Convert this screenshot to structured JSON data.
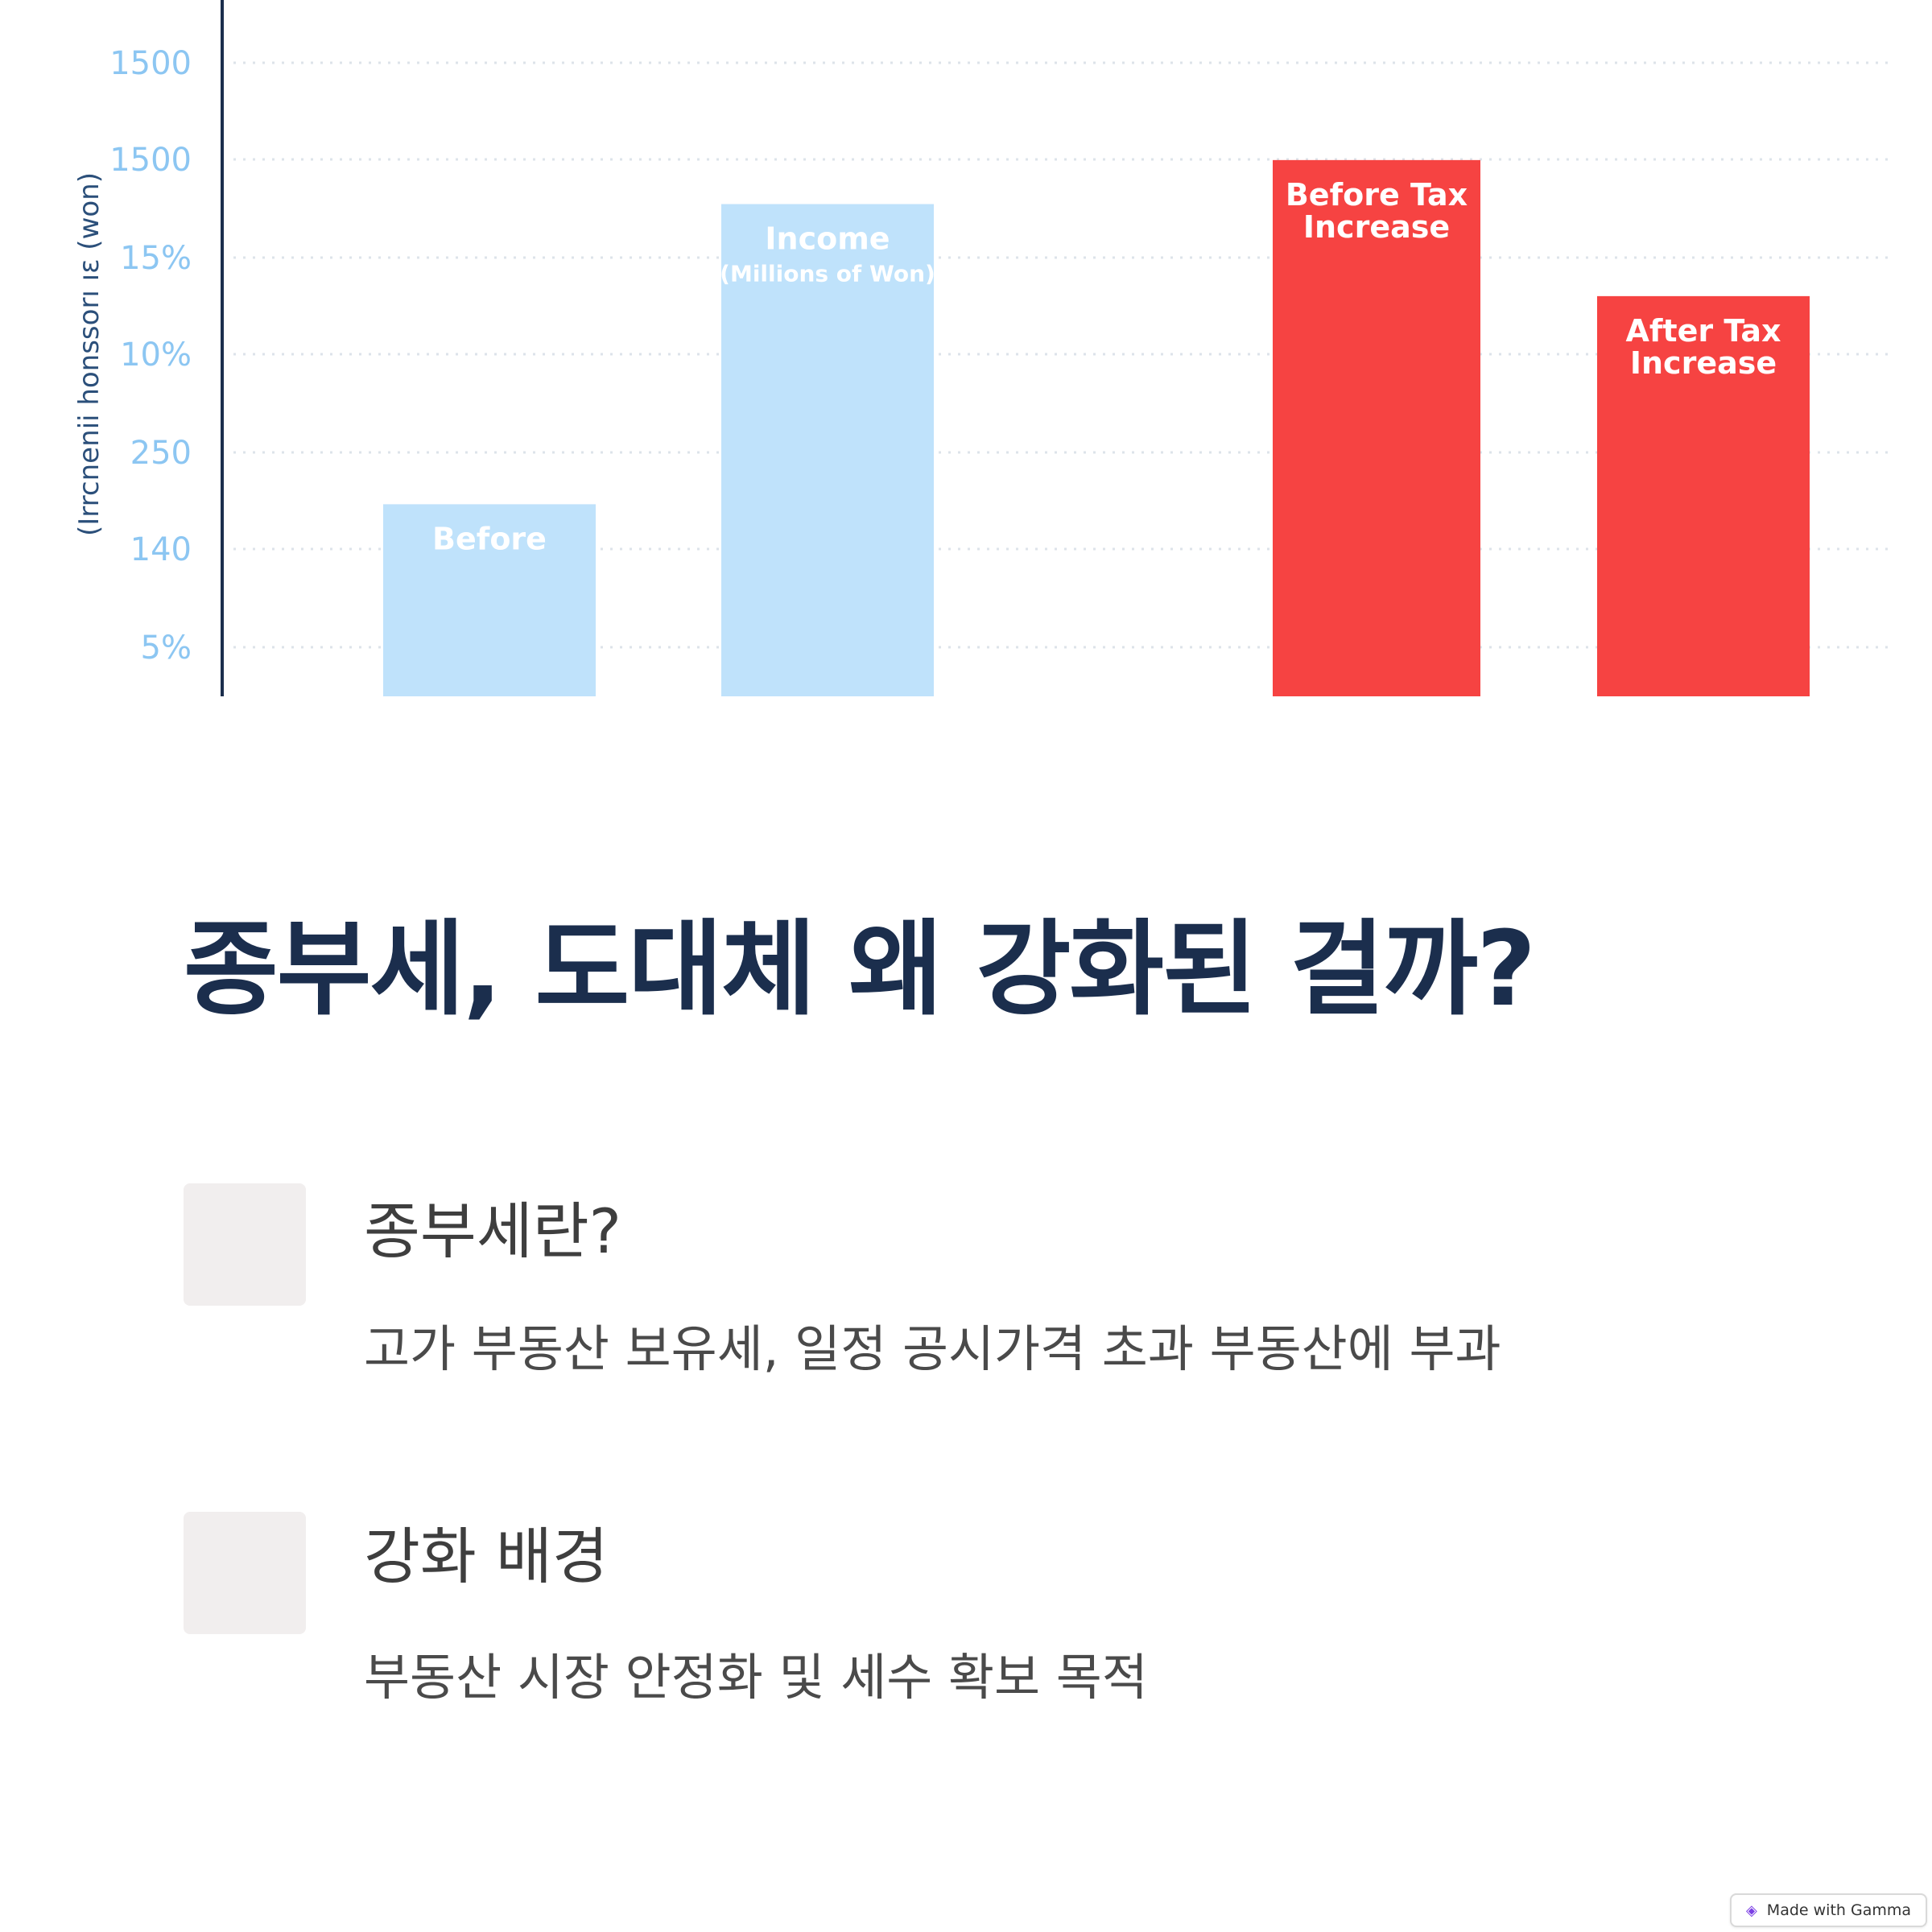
{
  "chart_data": {
    "type": "bar",
    "ylabel": "(Irrcnenii honssorı ıɛ (won)",
    "y_ticks": [
      "1500",
      "1500",
      "15%",
      "10%",
      "250",
      "140",
      "5%"
    ],
    "categories": [
      "Before",
      "Income\n(Millions of Won)",
      "Before Tax\nIncrease",
      "After Tax\nIncrease"
    ],
    "series": [
      {
        "values": [
          240,
          615,
          670,
          500
        ]
      }
    ],
    "bar_colors": [
      "#bfe2fb",
      "#bfe2fb",
      "#f64342",
      "#f64342"
    ],
    "ylim": [
      0,
      870
    ],
    "grid": true
  },
  "title": "종부세, 도대체 왜 강화된 걸까?",
  "features": [
    {
      "title": "종부세란?",
      "description": "고가 부동산 보유세, 일정 공시가격 초과 부동산에 부과"
    },
    {
      "title": "강화 배경",
      "description": "부동산 시장 안정화 및 세수 확보 목적"
    }
  ],
  "badge": {
    "label": "Made with Gamma",
    "icon": "gamma-logo-icon"
  }
}
